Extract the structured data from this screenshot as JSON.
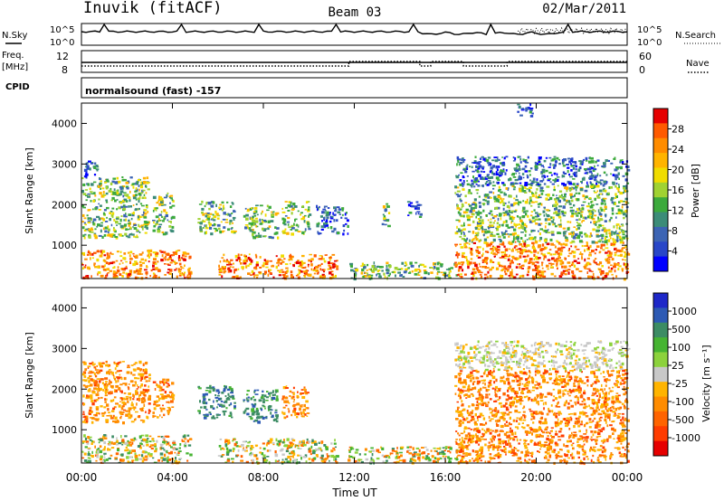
{
  "header": {
    "station": "Inuvik (fitACF)",
    "beam": "Beam 03",
    "date": "02/Mar/2011"
  },
  "summary_panels": {
    "nsky_label": "N.Sky",
    "nsky_ticks": [
      "10^5",
      "10^0"
    ],
    "nsearch_label": "N.Search",
    "nsearch_ticks": [
      "10^5",
      "10^0"
    ],
    "freq_label_1": "Freq.",
    "freq_label_2": "[MHz]",
    "freq_ticks": [
      "12",
      "8"
    ],
    "nave_label": "Nave",
    "nave_ticks": [
      "60",
      "0"
    ],
    "cpid_label": "CPID",
    "cpid_text": "normalsound (fast) -157"
  },
  "x_axis": {
    "label": "Time UT",
    "ticks": [
      "00:00",
      "04:00",
      "08:00",
      "12:00",
      "16:00",
      "20:00",
      "00:00"
    ]
  },
  "chart_data": [
    {
      "type": "heatmap",
      "name": "power",
      "ylabel": "Slant Range [km]",
      "yticks": [
        "4000",
        "3000",
        "2000",
        "1000"
      ],
      "ytick_values": [
        4000,
        3000,
        2000,
        1000
      ],
      "ylim": [
        180,
        4500
      ],
      "xlim_hours": [
        0,
        24
      ],
      "colorbar": {
        "label": "Power [dB]",
        "tick_labels": [
          "28",
          "24",
          "20",
          "16",
          "12",
          "8",
          "4"
        ],
        "colors": [
          "#e60000",
          "#ff5a00",
          "#ff8c00",
          "#ffb400",
          "#f0dc00",
          "#a0d232",
          "#3caa3c",
          "#3c8c78",
          "#3c64b4",
          "#2846c8",
          "#0000ff"
        ]
      },
      "blobs": [
        {
          "t0": 0.0,
          "t1": 4.8,
          "r0": 200,
          "r1": 900,
          "level": "high"
        },
        {
          "t0": 0.0,
          "t1": 2.9,
          "r0": 1200,
          "r1": 2700,
          "level": "mid"
        },
        {
          "t0": 0.0,
          "t1": 0.7,
          "r0": 2700,
          "r1": 3100,
          "level": "low"
        },
        {
          "t0": 3.1,
          "t1": 4.0,
          "r0": 1300,
          "r1": 2300,
          "level": "mid"
        },
        {
          "t0": 5.1,
          "t1": 6.7,
          "r0": 1300,
          "r1": 2100,
          "level": "mid"
        },
        {
          "t0": 6.0,
          "t1": 11.2,
          "r0": 200,
          "r1": 800,
          "level": "high"
        },
        {
          "t0": 7.1,
          "t1": 8.6,
          "r0": 1200,
          "r1": 2000,
          "level": "mid"
        },
        {
          "t0": 8.8,
          "t1": 10.0,
          "r0": 1300,
          "r1": 2100,
          "level": "mid"
        },
        {
          "t0": 10.3,
          "t1": 11.7,
          "r0": 1300,
          "r1": 2000,
          "level": "low"
        },
        {
          "t0": 11.7,
          "t1": 16.5,
          "r0": 200,
          "r1": 600,
          "level": "mid"
        },
        {
          "t0": 13.2,
          "t1": 13.5,
          "r0": 1500,
          "r1": 2200,
          "level": "mid"
        },
        {
          "t0": 14.3,
          "t1": 14.9,
          "r0": 1700,
          "r1": 2100,
          "level": "low"
        },
        {
          "t0": 16.4,
          "t1": 24.0,
          "r0": 200,
          "r1": 1100,
          "level": "high"
        },
        {
          "t0": 16.4,
          "t1": 24.0,
          "r0": 1100,
          "r1": 2500,
          "level": "mid"
        },
        {
          "t0": 16.4,
          "t1": 24.0,
          "r0": 2500,
          "r1": 3200,
          "level": "low"
        },
        {
          "t0": 19.0,
          "t1": 19.8,
          "r0": 4200,
          "r1": 4500,
          "level": "low"
        }
      ]
    },
    {
      "type": "heatmap",
      "name": "velocity",
      "ylabel": "Slant Range [km]",
      "yticks": [
        "4000",
        "3000",
        "2000",
        "1000"
      ],
      "ytick_values": [
        4000,
        3000,
        2000,
        1000
      ],
      "ylim": [
        180,
        4500
      ],
      "xlim_hours": [
        0,
        24
      ],
      "colorbar": {
        "label": "Velocity [m s⁻¹]",
        "tick_labels": [
          "1000",
          "500",
          "100",
          "25",
          "-25",
          "-100",
          "-500",
          "-1000"
        ],
        "colors": [
          "#1e28c8",
          "#2d5ab4",
          "#3c8c64",
          "#46b432",
          "#8cd23c",
          "#c8c8c8",
          "#ffb400",
          "#ff8c00",
          "#ff6400",
          "#ff3c00",
          "#e60000"
        ]
      },
      "blobs": [
        {
          "t0": 0.0,
          "t1": 4.8,
          "r0": 200,
          "r1": 900,
          "level": "mixed"
        },
        {
          "t0": 0.0,
          "t1": 3.0,
          "r0": 1200,
          "r1": 2700,
          "level": "neg"
        },
        {
          "t0": 3.1,
          "t1": 4.0,
          "r0": 1300,
          "r1": 2300,
          "level": "neg"
        },
        {
          "t0": 5.1,
          "t1": 6.7,
          "r0": 1300,
          "r1": 2100,
          "level": "pos"
        },
        {
          "t0": 7.1,
          "t1": 8.6,
          "r0": 1200,
          "r1": 2000,
          "level": "pos"
        },
        {
          "t0": 8.8,
          "t1": 10.0,
          "r0": 1300,
          "r1": 2100,
          "level": "neg"
        },
        {
          "t0": 6.0,
          "t1": 11.2,
          "r0": 200,
          "r1": 800,
          "level": "mixed"
        },
        {
          "t0": 11.7,
          "t1": 16.5,
          "r0": 200,
          "r1": 600,
          "level": "mixed"
        },
        {
          "t0": 16.4,
          "t1": 24.0,
          "r0": 200,
          "r1": 1100,
          "level": "neg"
        },
        {
          "t0": 16.4,
          "t1": 24.0,
          "r0": 1100,
          "r1": 2500,
          "level": "neg"
        },
        {
          "t0": 16.4,
          "t1": 24.0,
          "r0": 2500,
          "r1": 3200,
          "level": "zero"
        }
      ]
    }
  ]
}
